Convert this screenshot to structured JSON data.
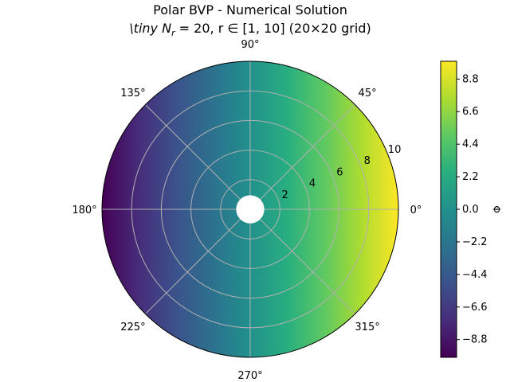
{
  "title_line1": "Polar BVP - Numerical Solution",
  "title_line2": "\\tiny N",
  "title_line2_sub": "r",
  "title_line2_rest": " = 20, r ∈ [1, 10] (20×20 grid)",
  "chart_data": {
    "type": "heatmap",
    "projection": "polar",
    "title": "Polar BVP - Numerical Solution \\tiny N_r = 20, r ∈ [1, 10] (20×20 grid)",
    "function": "phi = r * cos(theta)",
    "grid": {
      "nr": 20,
      "ntheta": 20
    },
    "rlim": [
      1,
      10
    ],
    "r_ticks": [
      "2",
      "4",
      "6",
      "8",
      "10"
    ],
    "r_tick_values": [
      2,
      4,
      6,
      8,
      10
    ],
    "theta_ticks": [
      "0°",
      "45°",
      "90°",
      "135°",
      "180°",
      "225°",
      "270°",
      "315°"
    ],
    "theta_tick_values": [
      0,
      45,
      90,
      135,
      180,
      225,
      270,
      315
    ],
    "colormap": "viridis",
    "clim": [
      -10,
      10
    ],
    "colorbar": {
      "label": "Φ",
      "ticks": [
        "8.8",
        "6.6",
        "4.4",
        "2.2",
        "0.0",
        "−2.2",
        "−4.4",
        "−6.6",
        "−8.8"
      ],
      "tick_values": [
        8.8,
        6.6,
        4.4,
        2.2,
        0.0,
        -2.2,
        -4.4,
        -6.6,
        -8.8
      ]
    },
    "polar_grid": true
  }
}
